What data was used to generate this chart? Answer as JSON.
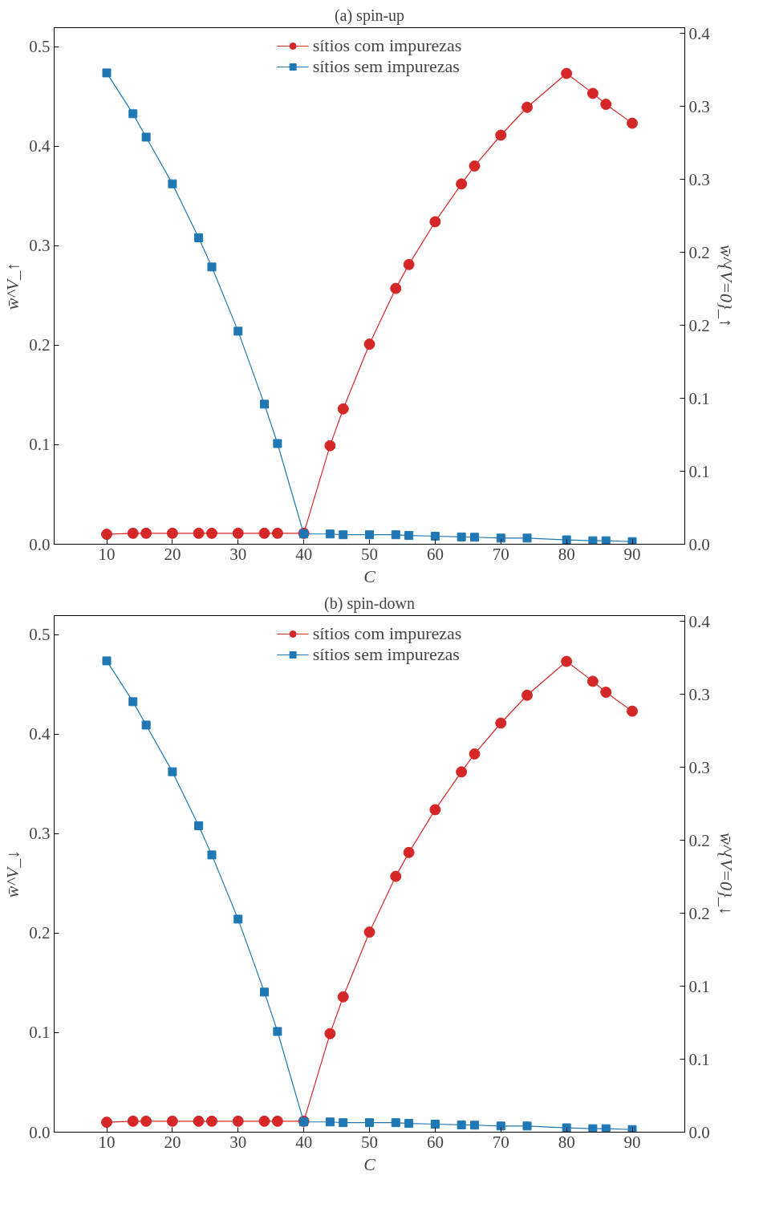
{
  "chart_data": [
    {
      "type": "line",
      "title": "(a) spin-up",
      "xlabel": "C",
      "ylabel": "w̄^V_↑",
      "y2label": "w̄^{V=0}_↑",
      "x": [
        10,
        14,
        16,
        20,
        24,
        26,
        30,
        34,
        36,
        40,
        44,
        46,
        50,
        54,
        56,
        60,
        64,
        66,
        70,
        74,
        80,
        84,
        86,
        90
      ],
      "series": [
        {
          "name": "sítios com impurezas",
          "color": "#d62728",
          "marker": "circle",
          "values": [
            0.01,
            0.011,
            0.011,
            0.011,
            0.011,
            0.011,
            0.011,
            0.011,
            0.011,
            0.011,
            0.099,
            0.136,
            0.201,
            0.257,
            0.281,
            0.324,
            0.362,
            0.38,
            0.411,
            0.439,
            0.473,
            0.453,
            0.442,
            0.423
          ]
        },
        {
          "name": "sítios sem impurezas",
          "color": "#1f77b4",
          "marker": "square",
          "axis": "y2",
          "values": [
            0.323,
            0.295,
            0.279,
            0.247,
            0.21,
            0.19,
            0.146,
            0.096,
            0.069,
            0.007,
            0.007,
            0.0065,
            0.0065,
            0.0065,
            0.006,
            0.0055,
            0.005,
            0.0048,
            0.0042,
            0.0042,
            0.003,
            0.0024,
            0.0024,
            0.0018
          ]
        }
      ],
      "xlim": [
        2,
        98
      ],
      "xticks": [
        10,
        20,
        30,
        40,
        50,
        60,
        70,
        80,
        90
      ],
      "ylim": [
        0,
        0.519
      ],
      "yticks": [
        {
          "value": 0,
          "label": "0.0"
        },
        0.1,
        0.2,
        0.3,
        0.4,
        0.5
      ],
      "y2lim": [
        0,
        0.354
      ],
      "y2ticks": [
        {
          "value": 0,
          "label": "0.0"
        },
        {
          "value": 0.05,
          "label": "0.1"
        },
        {
          "value": 0.1,
          "label": "0.1"
        },
        {
          "value": 0.15,
          "label": "0.2"
        },
        {
          "value": 0.2,
          "label": "0.2"
        },
        {
          "value": 0.25,
          "label": "0.3"
        },
        {
          "value": 0.3,
          "label": "0.3"
        },
        {
          "value": 0.35,
          "label": "0.4"
        }
      ],
      "grid": false,
      "legend": "top",
      "line_style": "solid"
    },
    {
      "type": "line",
      "title": "(b) spin-down",
      "xlabel": "C",
      "ylabel": "w̄^V_↓",
      "y2label": "w̄^{V=0}_↓",
      "x": [
        10,
        14,
        16,
        20,
        24,
        26,
        30,
        34,
        36,
        40,
        44,
        46,
        50,
        54,
        56,
        60,
        64,
        66,
        70,
        74,
        80,
        84,
        86,
        90
      ],
      "series": [
        {
          "name": "sítios com impurezas",
          "color": "#d62728",
          "marker": "circle",
          "values": [
            0.01,
            0.011,
            0.011,
            0.011,
            0.011,
            0.011,
            0.011,
            0.011,
            0.011,
            0.011,
            0.099,
            0.136,
            0.201,
            0.257,
            0.281,
            0.324,
            0.362,
            0.38,
            0.411,
            0.439,
            0.473,
            0.453,
            0.442,
            0.423
          ]
        },
        {
          "name": "sítios sem impurezas",
          "color": "#1f77b4",
          "marker": "square",
          "axis": "y2",
          "values": [
            0.323,
            0.295,
            0.279,
            0.247,
            0.21,
            0.19,
            0.146,
            0.096,
            0.069,
            0.007,
            0.007,
            0.0065,
            0.0065,
            0.0065,
            0.006,
            0.0055,
            0.005,
            0.0048,
            0.0042,
            0.0042,
            0.003,
            0.0024,
            0.0024,
            0.0018
          ]
        }
      ],
      "xlim": [
        2,
        98
      ],
      "xticks": [
        10,
        20,
        30,
        40,
        50,
        60,
        70,
        80,
        90
      ],
      "ylim": [
        0,
        0.519
      ],
      "yticks": [
        {
          "value": 0,
          "label": "0.0"
        },
        0.1,
        0.2,
        0.3,
        0.4,
        0.5
      ],
      "y2lim": [
        0,
        0.354
      ],
      "y2ticks": [
        {
          "value": 0,
          "label": "0.0"
        },
        {
          "value": 0.05,
          "label": "0.1"
        },
        {
          "value": 0.1,
          "label": "0.1"
        },
        {
          "value": 0.15,
          "label": "0.2"
        },
        {
          "value": 0.2,
          "label": "0.2"
        },
        {
          "value": 0.25,
          "label": "0.3"
        },
        {
          "value": 0.3,
          "label": "0.3"
        },
        {
          "value": 0.35,
          "label": "0.4"
        }
      ],
      "grid": false,
      "legend": "top",
      "line_style": "solid"
    }
  ]
}
